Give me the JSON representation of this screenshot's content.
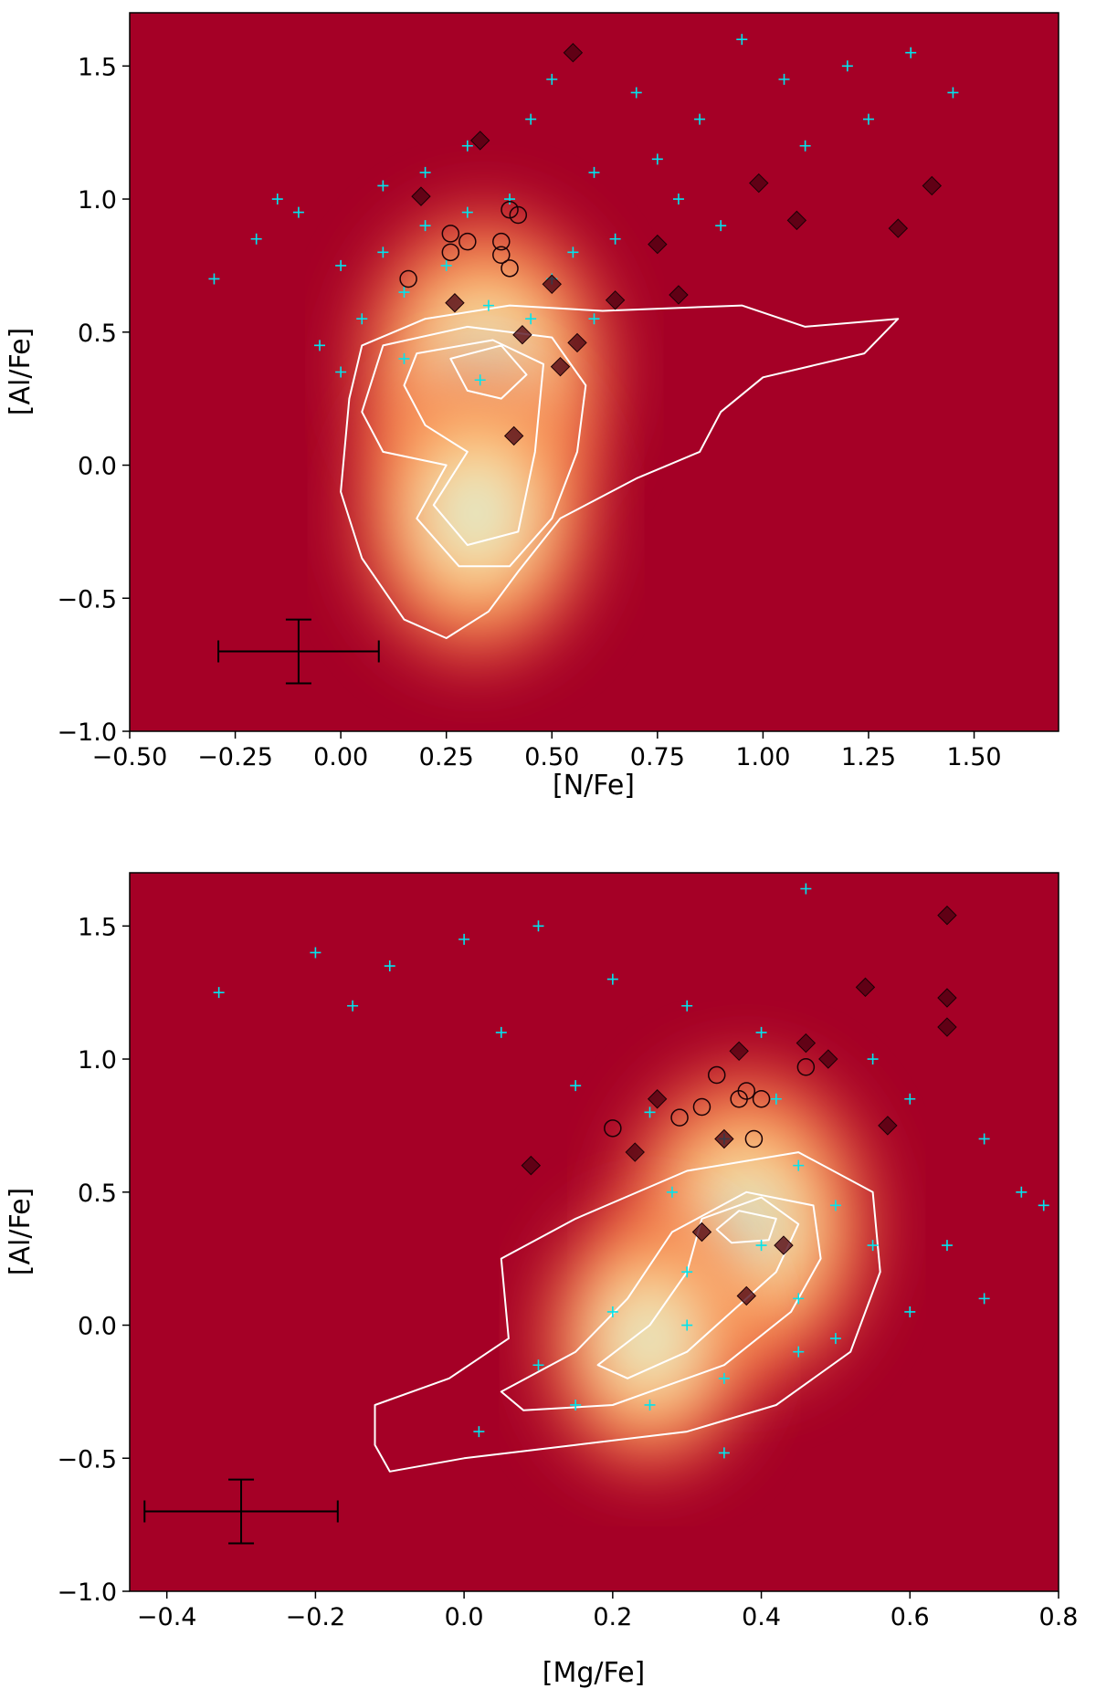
{
  "chart_data": [
    {
      "type": "scatter",
      "xlabel": "[N/Fe]",
      "ylabel": "[Al/Fe]",
      "xlim": [
        -0.5,
        1.7
      ],
      "ylim": [
        -1.0,
        1.7
      ],
      "xticks": [
        -0.5,
        -0.25,
        0.0,
        0.25,
        0.5,
        0.75,
        1.0,
        1.25,
        1.5
      ],
      "xtick_labels": [
        "−0.50",
        "−0.25",
        "0.00",
        "0.25",
        "0.50",
        "0.75",
        "1.00",
        "1.25",
        "1.50"
      ],
      "yticks": [
        -1.0,
        -0.5,
        0.0,
        0.5,
        1.0,
        1.5
      ],
      "ytick_labels": [
        "−1.0",
        "−0.5",
        "0.0",
        "0.5",
        "1.0",
        "1.5"
      ],
      "background_color": "#a50026",
      "density_peaks": [
        {
          "x": 0.34,
          "y": 0.36,
          "amplitude": 1.0
        },
        {
          "x": 0.32,
          "y": -0.18,
          "amplitude": 0.85
        }
      ],
      "density_contours": [
        [
          [
            0.62,
            0.58
          ],
          [
            0.95,
            0.6
          ],
          [
            1.1,
            0.52
          ],
          [
            1.32,
            0.55
          ],
          [
            1.24,
            0.42
          ],
          [
            1.0,
            0.33
          ],
          [
            0.9,
            0.2
          ],
          [
            0.85,
            0.05
          ],
          [
            0.7,
            -0.05
          ],
          [
            0.52,
            -0.2
          ],
          [
            0.42,
            -0.4
          ],
          [
            0.35,
            -0.55
          ],
          [
            0.25,
            -0.65
          ],
          [
            0.15,
            -0.58
          ],
          [
            0.05,
            -0.35
          ],
          [
            0.0,
            -0.1
          ],
          [
            0.02,
            0.25
          ],
          [
            0.05,
            0.45
          ],
          [
            0.2,
            0.55
          ],
          [
            0.4,
            0.6
          ]
        ],
        [
          [
            0.1,
            0.45
          ],
          [
            0.3,
            0.52
          ],
          [
            0.5,
            0.48
          ],
          [
            0.58,
            0.3
          ],
          [
            0.56,
            0.05
          ],
          [
            0.5,
            -0.2
          ],
          [
            0.4,
            -0.38
          ],
          [
            0.28,
            -0.38
          ],
          [
            0.18,
            -0.2
          ],
          [
            0.25,
            0.0
          ],
          [
            0.1,
            0.05
          ],
          [
            0.05,
            0.2
          ]
        ],
        [
          [
            0.18,
            0.42
          ],
          [
            0.36,
            0.47
          ],
          [
            0.48,
            0.38
          ],
          [
            0.46,
            0.05
          ],
          [
            0.42,
            -0.25
          ],
          [
            0.3,
            -0.3
          ],
          [
            0.22,
            -0.15
          ],
          [
            0.3,
            0.05
          ],
          [
            0.2,
            0.15
          ],
          [
            0.15,
            0.3
          ]
        ],
        [
          [
            0.26,
            0.4
          ],
          [
            0.38,
            0.45
          ],
          [
            0.44,
            0.34
          ],
          [
            0.38,
            0.25
          ],
          [
            0.3,
            0.28
          ]
        ]
      ],
      "error_bar": {
        "x": -0.1,
        "y": -0.7,
        "xerr": 0.19,
        "yerr": 0.12
      },
      "points_color": "#00e5ee",
      "cross_points": [
        [
          0.1,
          1.05
        ],
        [
          0.2,
          0.9
        ],
        [
          -0.1,
          0.95
        ],
        [
          0.3,
          1.2
        ],
        [
          0.45,
          1.3
        ],
        [
          0.6,
          1.1
        ],
        [
          0.75,
          1.15
        ],
        [
          0.85,
          1.3
        ],
        [
          1.05,
          1.45
        ],
        [
          1.2,
          1.5
        ],
        [
          1.35,
          1.55
        ],
        [
          0.95,
          1.6
        ],
        [
          0.7,
          1.4
        ],
        [
          0.5,
          1.45
        ],
        [
          -0.2,
          0.85
        ],
        [
          -0.3,
          0.7
        ],
        [
          0.0,
          0.75
        ],
        [
          0.15,
          0.65
        ],
        [
          0.25,
          0.75
        ],
        [
          0.05,
          0.55
        ],
        [
          -0.05,
          0.45
        ],
        [
          0.35,
          0.6
        ],
        [
          0.55,
          0.8
        ],
        [
          0.65,
          0.85
        ],
        [
          0.8,
          1.0
        ],
        [
          0.9,
          0.9
        ],
        [
          1.1,
          1.2
        ],
        [
          1.25,
          1.3
        ],
        [
          1.45,
          1.4
        ],
        [
          0.4,
          1.0
        ],
        [
          0.3,
          0.95
        ],
        [
          0.2,
          1.1
        ],
        [
          -0.15,
          1.0
        ],
        [
          0.1,
          0.8
        ],
        [
          0.5,
          0.7
        ],
        [
          0.6,
          0.55
        ],
        [
          0.45,
          0.55
        ],
        [
          0.0,
          0.35
        ],
        [
          0.33,
          0.32
        ],
        [
          0.15,
          0.4
        ]
      ],
      "diamond_points": [
        [
          0.55,
          1.55
        ],
        [
          0.33,
          1.22
        ],
        [
          0.19,
          1.01
        ],
        [
          0.99,
          1.06
        ],
        [
          1.08,
          0.92
        ],
        [
          1.32,
          0.89
        ],
        [
          1.4,
          1.05
        ],
        [
          0.75,
          0.83
        ],
        [
          0.65,
          0.62
        ],
        [
          0.8,
          0.64
        ],
        [
          0.27,
          0.61
        ],
        [
          0.5,
          0.68
        ],
        [
          0.43,
          0.49
        ],
        [
          0.56,
          0.46
        ],
        [
          0.52,
          0.37
        ],
        [
          0.41,
          0.11
        ]
      ],
      "circle_points": [
        [
          0.16,
          0.7
        ],
        [
          0.26,
          0.8
        ],
        [
          0.26,
          0.87
        ],
        [
          0.3,
          0.84
        ],
        [
          0.38,
          0.84
        ],
        [
          0.38,
          0.79
        ],
        [
          0.4,
          0.74
        ],
        [
          0.4,
          0.96
        ],
        [
          0.42,
          0.94
        ]
      ]
    },
    {
      "type": "scatter",
      "xlabel": "[Mg/Fe]",
      "ylabel": "[Al/Fe]",
      "xlim": [
        -0.45,
        0.8
      ],
      "ylim": [
        -1.0,
        1.7
      ],
      "xticks": [
        -0.4,
        -0.2,
        0.0,
        0.2,
        0.4,
        0.6,
        0.8
      ],
      "xtick_labels": [
        "−0.4",
        "−0.2",
        "0.0",
        "0.2",
        "0.4",
        "0.6",
        "0.8"
      ],
      "yticks": [
        -1.0,
        -0.5,
        0.0,
        0.5,
        1.0,
        1.5
      ],
      "ytick_labels": [
        "−1.0",
        "−0.5",
        "0.0",
        "0.5",
        "1.0",
        "1.5"
      ],
      "background_color": "#a50026",
      "density_peaks": [
        {
          "x": 0.38,
          "y": 0.38,
          "amplitude": 1.0
        },
        {
          "x": 0.25,
          "y": -0.05,
          "amplitude": 0.6
        }
      ],
      "density_contours": [
        [
          [
            -0.12,
            -0.3
          ],
          [
            -0.02,
            -0.2
          ],
          [
            0.06,
            -0.05
          ],
          [
            0.05,
            0.25
          ],
          [
            0.15,
            0.4
          ],
          [
            0.3,
            0.58
          ],
          [
            0.45,
            0.65
          ],
          [
            0.55,
            0.5
          ],
          [
            0.56,
            0.2
          ],
          [
            0.52,
            -0.1
          ],
          [
            0.42,
            -0.3
          ],
          [
            0.3,
            -0.4
          ],
          [
            0.15,
            -0.45
          ],
          [
            0.0,
            -0.5
          ],
          [
            -0.1,
            -0.55
          ],
          [
            -0.12,
            -0.45
          ]
        ],
        [
          [
            0.05,
            -0.25
          ],
          [
            0.15,
            -0.1
          ],
          [
            0.22,
            0.1
          ],
          [
            0.28,
            0.35
          ],
          [
            0.38,
            0.5
          ],
          [
            0.47,
            0.45
          ],
          [
            0.48,
            0.25
          ],
          [
            0.44,
            0.05
          ],
          [
            0.35,
            -0.15
          ],
          [
            0.2,
            -0.3
          ],
          [
            0.08,
            -0.32
          ]
        ],
        [
          [
            0.18,
            -0.15
          ],
          [
            0.25,
            0.0
          ],
          [
            0.3,
            0.2
          ],
          [
            0.32,
            0.4
          ],
          [
            0.4,
            0.48
          ],
          [
            0.45,
            0.38
          ],
          [
            0.42,
            0.2
          ],
          [
            0.36,
            0.05
          ],
          [
            0.3,
            -0.1
          ],
          [
            0.22,
            -0.2
          ]
        ],
        [
          [
            0.34,
            0.36
          ],
          [
            0.37,
            0.43
          ],
          [
            0.42,
            0.4
          ],
          [
            0.41,
            0.32
          ],
          [
            0.36,
            0.31
          ]
        ]
      ],
      "error_bar": {
        "x": -0.3,
        "y": -0.7,
        "xerr": 0.13,
        "yerr": 0.12
      },
      "points_color": "#00e5ee",
      "cross_points": [
        [
          -0.33,
          1.25
        ],
        [
          -0.2,
          1.4
        ],
        [
          -0.1,
          1.35
        ],
        [
          0.0,
          1.45
        ],
        [
          0.1,
          1.5
        ],
        [
          0.2,
          1.3
        ],
        [
          0.3,
          1.2
        ],
        [
          0.4,
          1.1
        ],
        [
          0.46,
          1.64
        ],
        [
          0.55,
          1.0
        ],
        [
          0.6,
          0.85
        ],
        [
          0.7,
          0.7
        ],
        [
          0.75,
          0.5
        ],
        [
          0.78,
          0.45
        ],
        [
          0.65,
          0.3
        ],
        [
          0.7,
          0.1
        ],
        [
          0.6,
          0.05
        ],
        [
          0.5,
          -0.05
        ],
        [
          0.45,
          0.1
        ],
        [
          0.35,
          -0.2
        ],
        [
          0.25,
          -0.3
        ],
        [
          0.15,
          -0.3
        ],
        [
          0.1,
          -0.15
        ],
        [
          0.02,
          -0.4
        ],
        [
          0.35,
          -0.48
        ],
        [
          -0.15,
          1.2
        ],
        [
          0.05,
          1.1
        ],
        [
          0.15,
          0.9
        ],
        [
          0.25,
          0.8
        ],
        [
          0.35,
          0.7
        ],
        [
          0.45,
          0.6
        ],
        [
          0.5,
          0.45
        ],
        [
          0.55,
          0.3
        ],
        [
          0.4,
          0.3
        ],
        [
          0.3,
          0.2
        ],
        [
          0.2,
          0.05
        ],
        [
          0.3,
          0.0
        ],
        [
          0.45,
          -0.1
        ],
        [
          0.28,
          0.5
        ],
        [
          0.42,
          0.85
        ]
      ],
      "diamond_points": [
        [
          0.65,
          1.54
        ],
        [
          0.65,
          1.23
        ],
        [
          0.65,
          1.12
        ],
        [
          0.54,
          1.27
        ],
        [
          0.46,
          1.06
        ],
        [
          0.49,
          1.0
        ],
        [
          0.37,
          1.03
        ],
        [
          0.09,
          0.6
        ],
        [
          0.23,
          0.65
        ],
        [
          0.35,
          0.7
        ],
        [
          0.57,
          0.75
        ],
        [
          0.32,
          0.35
        ],
        [
          0.43,
          0.3
        ],
        [
          0.38,
          0.11
        ],
        [
          0.26,
          0.85
        ]
      ],
      "circle_points": [
        [
          0.2,
          0.74
        ],
        [
          0.29,
          0.78
        ],
        [
          0.32,
          0.82
        ],
        [
          0.34,
          0.94
        ],
        [
          0.37,
          0.85
        ],
        [
          0.38,
          0.88
        ],
        [
          0.4,
          0.85
        ],
        [
          0.39,
          0.7
        ],
        [
          0.46,
          0.97
        ]
      ]
    }
  ]
}
